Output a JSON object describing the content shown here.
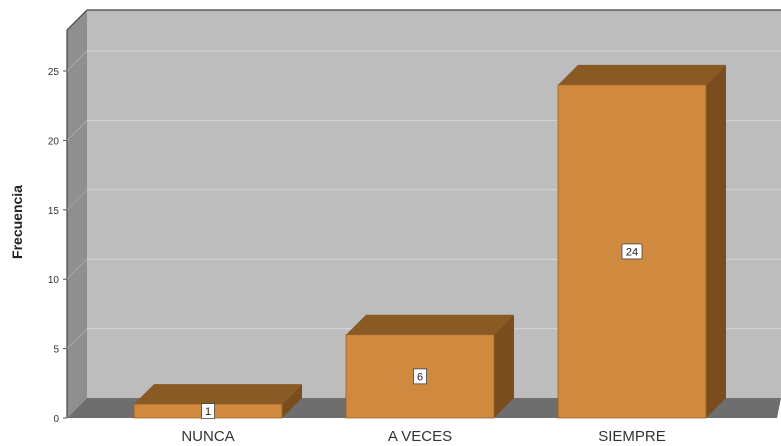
{
  "chart_data": {
    "type": "bar",
    "categories": [
      "NUNCA",
      "A VECES",
      "SIEMPRE"
    ],
    "values": [
      1,
      6,
      24
    ],
    "data_labels": [
      "1",
      "6",
      "24"
    ],
    "title": "",
    "xlabel": "",
    "ylabel": "Frecuencia",
    "ylim": [
      0,
      25
    ],
    "yticks": [
      0,
      5,
      10,
      15,
      20,
      25
    ],
    "grid": true,
    "style": "3d",
    "colors": {
      "bar_front": "#d08a40",
      "bar_top": "#8a5a24",
      "bar_side": "#7a4d1e",
      "plot_bg": "#bdbdbd",
      "floor": "#6e6e6e",
      "wall": "#8f8f8f"
    }
  }
}
